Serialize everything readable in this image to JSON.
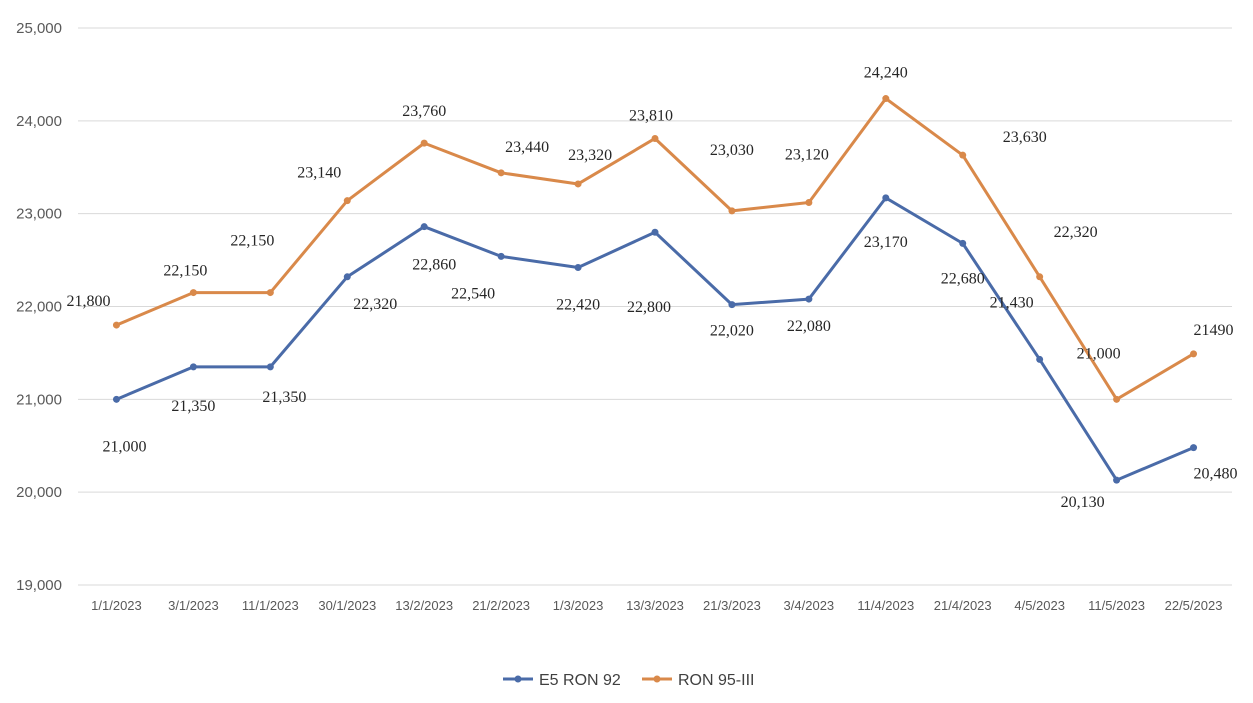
{
  "chart_data": {
    "type": "line",
    "title": "",
    "xlabel": "",
    "ylabel": "",
    "ylim": [
      19000,
      25000
    ],
    "y_ticks": [
      "19,000",
      "20,000",
      "21,000",
      "22,000",
      "23,000",
      "24,000",
      "25,000"
    ],
    "grid": true,
    "legend_position": "bottom",
    "categories": [
      "1/1/2023",
      "3/1/2023",
      "11/1/2023",
      "30/1/2023",
      "13/2/2023",
      "21/2/2023",
      "1/3/2023",
      "13/3/2023",
      "21/3/2023",
      "3/4/2023",
      "11/4/2023",
      "21/4/2023",
      "4/5/2023",
      "11/5/2023",
      "22/5/2023"
    ],
    "series": [
      {
        "name": "E5 RON 92",
        "color": "#4a6ba8",
        "values": [
          21000,
          21350,
          21350,
          22320,
          22860,
          22540,
          22420,
          22800,
          22020,
          22080,
          23170,
          22680,
          21430,
          20130,
          20480
        ],
        "labels": [
          "21,000",
          "21,350",
          "21,350",
          "22,320",
          "22,860",
          "22,540",
          "22,420",
          "22,800",
          "22,020",
          "22,080",
          "23,170",
          "22,680",
          "21,430",
          "20,130",
          "20,480"
        ]
      },
      {
        "name": "RON 95-III",
        "color": "#d9894a",
        "values": [
          21800,
          22150,
          22150,
          23140,
          23760,
          23440,
          23320,
          23810,
          23030,
          23120,
          24240,
          23630,
          22320,
          21000,
          21490
        ],
        "labels": [
          "21,800",
          "22,150",
          "22,150",
          "23,140",
          "23,760",
          "23,440",
          "23,320",
          "23,810",
          "23,030",
          "23,120",
          "24,240",
          "23,630",
          "22,320",
          "21,000",
          "21490"
        ]
      }
    ]
  }
}
